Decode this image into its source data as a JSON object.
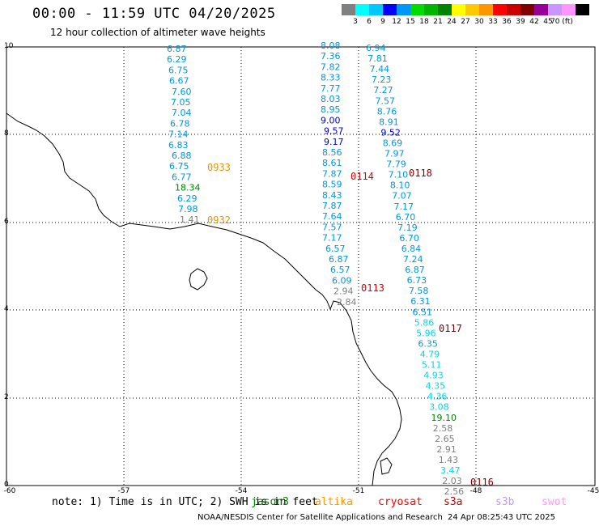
{
  "header": {
    "title": "00:00 - 11:59 UTC 04/20/2025",
    "subtitle": "12 hour collection of altimeter wave heights"
  },
  "colorbar": {
    "colors": [
      "#808080",
      "#00ffff",
      "#00c8ff",
      "#0000ff",
      "#0096ff",
      "#00dc00",
      "#00b400",
      "#008200",
      "#ffff00",
      "#ffc800",
      "#ff9600",
      "#ff0000",
      "#c80000",
      "#800000",
      "#960096",
      "#c896ff",
      "#ff96ff",
      "#000000"
    ],
    "labels": [
      "3",
      "6",
      "9",
      "12",
      "15",
      "18",
      "21",
      "24",
      "27",
      "30",
      "33",
      "36",
      "39",
      "42",
      "45",
      "70 (ft)"
    ]
  },
  "axes": {
    "lon_labels": [
      "-60",
      "-57",
      "-54",
      "-51",
      "-48",
      "-45"
    ],
    "lat_labels": [
      "10",
      "8",
      "6",
      "4",
      "2",
      "0"
    ]
  },
  "passes": [
    {
      "label": "0933",
      "color": "#e69600",
      "values": [
        "6.87",
        "6.29",
        "6.75",
        "6.67",
        "7.60",
        "7.05",
        "7.04",
        "6.78",
        "7.14",
        "6.83",
        "6.88",
        "6.75",
        "6.77",
        "18.34",
        "6.29",
        "7.98",
        "1.41"
      ]
    },
    {
      "label": "0932",
      "color": "#e69600",
      "values": []
    },
    {
      "label": "0114",
      "color": "#e00000",
      "values": [
        "8.08",
        "7.36",
        "7.82",
        "8.33",
        "7.77",
        "8.03",
        "8.95",
        "9.00",
        "9.57",
        "9.17",
        "8.56",
        "8.61",
        "7.87",
        "8.59",
        "8.43",
        "7.87",
        "7.64",
        "7.57",
        "7.17",
        "6.57",
        "6.87",
        "6.57",
        "6.09",
        "2.94",
        "2.84"
      ]
    },
    {
      "label": "0113",
      "color": "#e00000",
      "values": []
    },
    {
      "label": "0118",
      "color": "#800000",
      "values": [
        "6.94",
        "7.81",
        "7.44",
        "7.23",
        "7.27",
        "7.57",
        "8.76",
        "8.91",
        "9.52",
        "8.69",
        "7.97",
        "7.79",
        "7.10",
        "8.10",
        "7.07",
        "7.17",
        "6.70",
        "7.19",
        "6.70",
        "6.84",
        "7.24",
        "6.87",
        "6.73",
        "7.58",
        "6.31",
        "6.51",
        "5.86",
        "5.96",
        "6.35",
        "4.79",
        "5.11",
        "4.93",
        "4.35",
        "4.36",
        "3.08",
        "19.10",
        "2.58",
        "2.65",
        "2.91",
        "1.43",
        "3.47",
        "2.03",
        "2.56"
      ]
    },
    {
      "label": "0117",
      "color": "#800000",
      "values": []
    },
    {
      "label": "0116",
      "color": "#800000",
      "values": []
    }
  ],
  "footer": {
    "note": "note: 1) Time is in UTC; 2) SWH is in feet",
    "satellites": [
      {
        "name": "jason3",
        "color": "#008200"
      },
      {
        "name": "altika",
        "color": "#ff9600"
      },
      {
        "name": "cryosat",
        "color": "#ff0000"
      },
      {
        "name": "s3a",
        "color": "#c80000"
      },
      {
        "name": "s3b",
        "color": "#c896ff"
      },
      {
        "name": "swot",
        "color": "#ff96ff"
      }
    ],
    "credit": "NOAA/NESDIS Center for Satellite Applications and Research",
    "timestamp": "24 Apr 08:25:43 UTC 2025"
  }
}
